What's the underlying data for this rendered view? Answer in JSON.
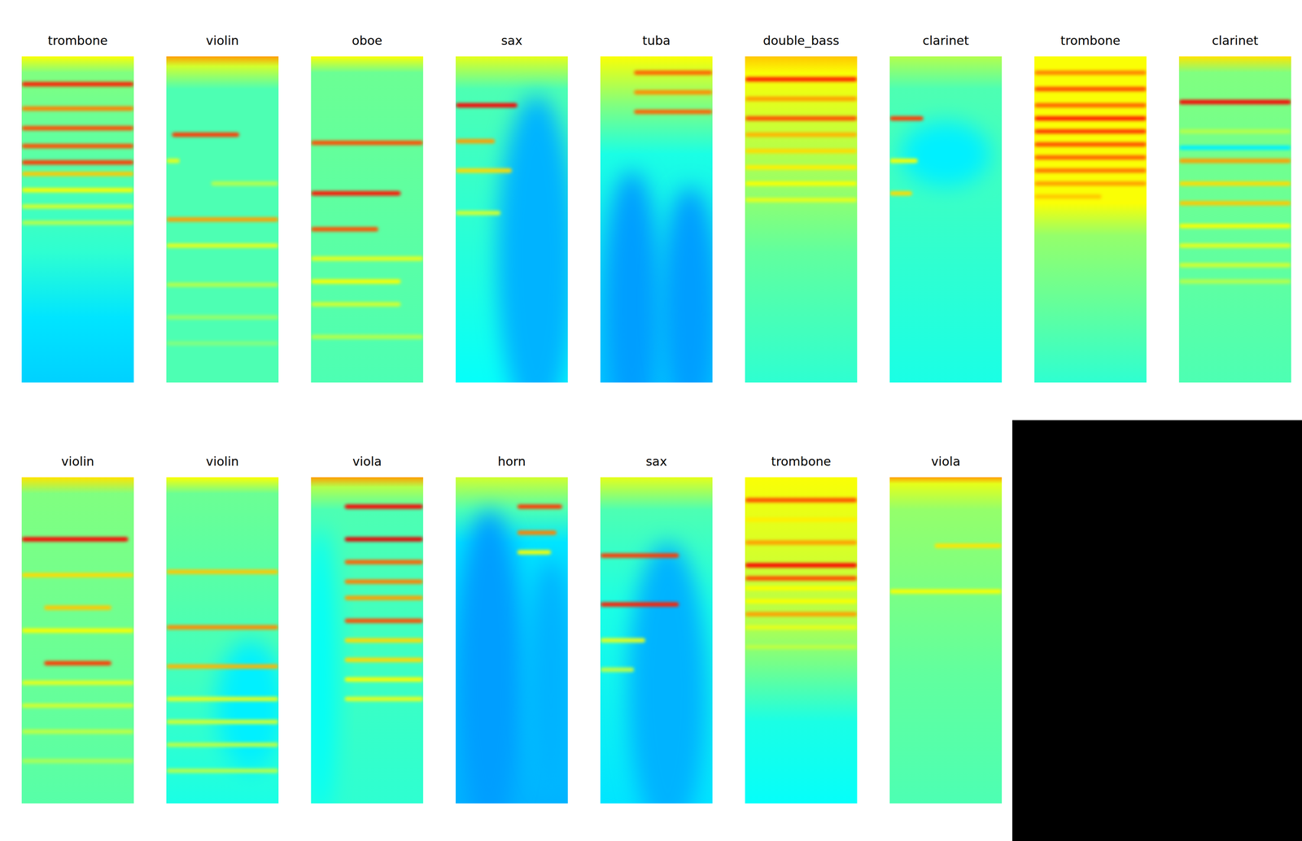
{
  "chart_data": [
    {
      "type": "heatmap",
      "title": "trombone",
      "tick_labels": false,
      "profile": [
        [
          0,
          0.62
        ],
        [
          0.05,
          0.5
        ],
        [
          0.6,
          0.42
        ],
        [
          0.8,
          0.35
        ],
        [
          1,
          0.33
        ]
      ],
      "bands": [
        {
          "y": 0.085,
          "level": 0.85,
          "x0": 0,
          "x1": 1
        },
        {
          "y": 0.16,
          "level": 0.75,
          "x0": 0,
          "x1": 1
        },
        {
          "y": 0.22,
          "level": 0.8,
          "x0": 0,
          "x1": 1
        },
        {
          "y": 0.275,
          "level": 0.8,
          "x0": 0,
          "x1": 1
        },
        {
          "y": 0.325,
          "level": 0.82,
          "x0": 0,
          "x1": 1
        },
        {
          "y": 0.36,
          "level": 0.68,
          "x0": 0,
          "x1": 1
        },
        {
          "y": 0.41,
          "level": 0.62,
          "x0": 0,
          "x1": 1
        },
        {
          "y": 0.46,
          "level": 0.58,
          "x0": 0,
          "x1": 1
        },
        {
          "y": 0.51,
          "level": 0.55,
          "x0": 0,
          "x1": 1
        }
      ],
      "patches": []
    },
    {
      "type": "heatmap",
      "title": "violin",
      "tick_labels": false,
      "profile": [
        [
          0,
          0.72
        ],
        [
          0.03,
          0.58
        ],
        [
          0.1,
          0.45
        ],
        [
          1,
          0.45
        ]
      ],
      "bands": [
        {
          "y": 0.24,
          "level": 0.82,
          "x0": 0.05,
          "x1": 0.65
        },
        {
          "y": 0.32,
          "level": 0.6,
          "x0": 0,
          "x1": 0.12
        },
        {
          "y": 0.39,
          "level": 0.55,
          "x0": 0.4,
          "x1": 1
        },
        {
          "y": 0.5,
          "level": 0.72,
          "x0": 0,
          "x1": 1
        },
        {
          "y": 0.58,
          "level": 0.6,
          "x0": 0,
          "x1": 1
        },
        {
          "y": 0.7,
          "level": 0.55,
          "x0": 0,
          "x1": 1
        },
        {
          "y": 0.8,
          "level": 0.52,
          "x0": 0,
          "x1": 1
        },
        {
          "y": 0.88,
          "level": 0.5,
          "x0": 0,
          "x1": 1
        }
      ],
      "patches": []
    },
    {
      "type": "heatmap",
      "title": "oboe",
      "tick_labels": false,
      "profile": [
        [
          0,
          0.62
        ],
        [
          0.05,
          0.48
        ],
        [
          1,
          0.45
        ]
      ],
      "bands": [
        {
          "y": 0.265,
          "level": 0.8,
          "x0": 0,
          "x1": 1
        },
        {
          "y": 0.42,
          "level": 0.86,
          "x0": 0,
          "x1": 0.8
        },
        {
          "y": 0.53,
          "level": 0.8,
          "x0": 0,
          "x1": 0.6
        },
        {
          "y": 0.62,
          "level": 0.6,
          "x0": 0,
          "x1": 1
        },
        {
          "y": 0.69,
          "level": 0.62,
          "x0": 0,
          "x1": 0.8
        },
        {
          "y": 0.76,
          "level": 0.58,
          "x0": 0,
          "x1": 0.8
        },
        {
          "y": 0.86,
          "level": 0.55,
          "x0": 0,
          "x1": 1
        }
      ],
      "patches": []
    },
    {
      "type": "heatmap",
      "title": "sax",
      "tick_labels": false,
      "profile": [
        [
          0,
          0.6
        ],
        [
          0.1,
          0.45
        ],
        [
          1,
          0.38
        ]
      ],
      "bands": [
        {
          "y": 0.15,
          "level": 0.88,
          "x0": 0,
          "x1": 0.55
        },
        {
          "y": 0.26,
          "level": 0.72,
          "x0": 0,
          "x1": 0.35
        },
        {
          "y": 0.35,
          "level": 0.66,
          "x0": 0,
          "x1": 0.5
        },
        {
          "y": 0.48,
          "level": 0.58,
          "x0": 0,
          "x1": 0.4
        }
      ],
      "patches": [
        {
          "cx": 0.72,
          "cy": 0.62,
          "rx": 0.35,
          "ry": 0.5,
          "level": 0.3
        }
      ]
    },
    {
      "type": "heatmap",
      "title": "tuba",
      "tick_labels": false,
      "profile": [
        [
          0,
          0.62
        ],
        [
          0.15,
          0.5
        ],
        [
          0.3,
          0.4
        ],
        [
          1,
          0.32
        ]
      ],
      "bands": [
        {
          "y": 0.05,
          "level": 0.78,
          "x0": 0.3,
          "x1": 1
        },
        {
          "y": 0.11,
          "level": 0.74,
          "x0": 0.3,
          "x1": 1
        },
        {
          "y": 0.17,
          "level": 0.78,
          "x0": 0.3,
          "x1": 1
        }
      ],
      "patches": [
        {
          "cx": 0.28,
          "cy": 0.75,
          "rx": 0.25,
          "ry": 0.4,
          "level": 0.28
        },
        {
          "cx": 0.8,
          "cy": 0.75,
          "rx": 0.25,
          "ry": 0.35,
          "level": 0.28
        }
      ]
    },
    {
      "type": "heatmap",
      "title": "double_bass",
      "tick_labels": false,
      "profile": [
        [
          0,
          0.68
        ],
        [
          0.05,
          0.62
        ],
        [
          0.3,
          0.55
        ],
        [
          0.6,
          0.47
        ],
        [
          1,
          0.42
        ]
      ],
      "bands": [
        {
          "y": 0.07,
          "level": 0.85,
          "x0": 0,
          "x1": 1
        },
        {
          "y": 0.13,
          "level": 0.72,
          "x0": 0,
          "x1": 1
        },
        {
          "y": 0.19,
          "level": 0.8,
          "x0": 0,
          "x1": 1
        },
        {
          "y": 0.24,
          "level": 0.7,
          "x0": 0,
          "x1": 1
        },
        {
          "y": 0.29,
          "level": 0.66,
          "x0": 0,
          "x1": 1
        },
        {
          "y": 0.34,
          "level": 0.64,
          "x0": 0,
          "x1": 1
        },
        {
          "y": 0.39,
          "level": 0.62,
          "x0": 0,
          "x1": 1
        },
        {
          "y": 0.44,
          "level": 0.6,
          "x0": 0,
          "x1": 1
        }
      ],
      "patches": []
    },
    {
      "type": "heatmap",
      "title": "clarinet",
      "tick_labels": false,
      "profile": [
        [
          0,
          0.55
        ],
        [
          0.1,
          0.45
        ],
        [
          1,
          0.4
        ]
      ],
      "bands": [
        {
          "y": 0.19,
          "level": 0.82,
          "x0": 0,
          "x1": 0.3
        },
        {
          "y": 0.32,
          "level": 0.62,
          "x0": 0,
          "x1": 0.25
        },
        {
          "y": 0.42,
          "level": 0.66,
          "x0": 0,
          "x1": 0.2
        }
      ],
      "patches": [
        {
          "cx": 0.5,
          "cy": 0.3,
          "rx": 0.4,
          "ry": 0.1,
          "level": 0.36
        }
      ]
    },
    {
      "type": "heatmap",
      "title": "trombone",
      "tick_labels": false,
      "profile": [
        [
          0,
          0.62
        ],
        [
          0.45,
          0.62
        ],
        [
          0.55,
          0.52
        ],
        [
          1,
          0.42
        ]
      ],
      "bands": [
        {
          "y": 0.05,
          "level": 0.75,
          "x0": 0,
          "x1": 1
        },
        {
          "y": 0.1,
          "level": 0.8,
          "x0": 0,
          "x1": 1
        },
        {
          "y": 0.15,
          "level": 0.78,
          "x0": 0,
          "x1": 1
        },
        {
          "y": 0.19,
          "level": 0.85,
          "x0": 0,
          "x1": 1
        },
        {
          "y": 0.23,
          "level": 0.82,
          "x0": 0,
          "x1": 1
        },
        {
          "y": 0.27,
          "level": 0.8,
          "x0": 0,
          "x1": 1
        },
        {
          "y": 0.31,
          "level": 0.78,
          "x0": 0,
          "x1": 1
        },
        {
          "y": 0.35,
          "level": 0.76,
          "x0": 0,
          "x1": 1
        },
        {
          "y": 0.39,
          "level": 0.72,
          "x0": 0,
          "x1": 1
        },
        {
          "y": 0.43,
          "level": 0.68,
          "x0": 0,
          "x1": 0.6
        }
      ],
      "patches": []
    },
    {
      "type": "heatmap",
      "title": "clarinet",
      "tick_labels": false,
      "profile": [
        [
          0,
          0.65
        ],
        [
          0.05,
          0.5
        ],
        [
          1,
          0.45
        ]
      ],
      "bands": [
        {
          "y": 0.14,
          "level": 0.88,
          "x0": 0,
          "x1": 1
        },
        {
          "y": 0.23,
          "level": 0.55,
          "x0": 0,
          "x1": 1
        },
        {
          "y": 0.28,
          "level": 0.36,
          "x0": 0,
          "x1": 1
        },
        {
          "y": 0.32,
          "level": 0.72,
          "x0": 0,
          "x1": 1
        },
        {
          "y": 0.39,
          "level": 0.66,
          "x0": 0,
          "x1": 1
        },
        {
          "y": 0.45,
          "level": 0.68,
          "x0": 0,
          "x1": 1
        },
        {
          "y": 0.52,
          "level": 0.62,
          "x0": 0,
          "x1": 1
        },
        {
          "y": 0.58,
          "level": 0.6,
          "x0": 0,
          "x1": 1
        },
        {
          "y": 0.64,
          "level": 0.58,
          "x0": 0,
          "x1": 1
        },
        {
          "y": 0.69,
          "level": 0.55,
          "x0": 0,
          "x1": 1
        }
      ],
      "patches": []
    },
    {
      "type": "heatmap",
      "title": "violin",
      "tick_labels": false,
      "profile": [
        [
          0,
          0.65
        ],
        [
          0.05,
          0.5
        ],
        [
          1,
          0.46
        ]
      ],
      "bands": [
        {
          "y": 0.19,
          "level": 0.88,
          "x0": 0,
          "x1": 0.95
        },
        {
          "y": 0.3,
          "level": 0.66,
          "x0": 0,
          "x1": 1
        },
        {
          "y": 0.4,
          "level": 0.68,
          "x0": 0.2,
          "x1": 0.8
        },
        {
          "y": 0.47,
          "level": 0.62,
          "x0": 0,
          "x1": 1
        },
        {
          "y": 0.57,
          "level": 0.82,
          "x0": 0.2,
          "x1": 0.8
        },
        {
          "y": 0.63,
          "level": 0.6,
          "x0": 0,
          "x1": 1
        },
        {
          "y": 0.7,
          "level": 0.58,
          "x0": 0,
          "x1": 1
        },
        {
          "y": 0.78,
          "level": 0.56,
          "x0": 0,
          "x1": 1
        },
        {
          "y": 0.87,
          "level": 0.54,
          "x0": 0,
          "x1": 1
        }
      ],
      "patches": []
    },
    {
      "type": "heatmap",
      "title": "violin",
      "tick_labels": false,
      "profile": [
        [
          0,
          0.62
        ],
        [
          0.05,
          0.48
        ],
        [
          0.6,
          0.44
        ],
        [
          1,
          0.4
        ]
      ],
      "bands": [
        {
          "y": 0.29,
          "level": 0.68,
          "x0": 0,
          "x1": 1
        },
        {
          "y": 0.46,
          "level": 0.74,
          "x0": 0,
          "x1": 1
        },
        {
          "y": 0.58,
          "level": 0.7,
          "x0": 0,
          "x1": 1
        },
        {
          "y": 0.68,
          "level": 0.6,
          "x0": 0,
          "x1": 1
        },
        {
          "y": 0.75,
          "level": 0.58,
          "x0": 0,
          "x1": 1
        },
        {
          "y": 0.82,
          "level": 0.56,
          "x0": 0,
          "x1": 1
        },
        {
          "y": 0.9,
          "level": 0.55,
          "x0": 0,
          "x1": 1
        }
      ],
      "patches": [
        {
          "cx": 0.75,
          "cy": 0.7,
          "rx": 0.3,
          "ry": 0.2,
          "level": 0.36
        }
      ]
    },
    {
      "type": "heatmap",
      "title": "viola",
      "tick_labels": false,
      "profile": [
        [
          0,
          0.72
        ],
        [
          0.03,
          0.55
        ],
        [
          0.1,
          0.45
        ],
        [
          1,
          0.42
        ]
      ],
      "bands": [
        {
          "y": 0.09,
          "level": 0.88,
          "x0": 0.3,
          "x1": 1
        },
        {
          "y": 0.19,
          "level": 0.9,
          "x0": 0.3,
          "x1": 1
        },
        {
          "y": 0.26,
          "level": 0.78,
          "x0": 0.3,
          "x1": 1
        },
        {
          "y": 0.32,
          "level": 0.75,
          "x0": 0.3,
          "x1": 1
        },
        {
          "y": 0.37,
          "level": 0.72,
          "x0": 0.3,
          "x1": 1
        },
        {
          "y": 0.44,
          "level": 0.8,
          "x0": 0.3,
          "x1": 1
        },
        {
          "y": 0.5,
          "level": 0.66,
          "x0": 0.3,
          "x1": 1
        },
        {
          "y": 0.56,
          "level": 0.66,
          "x0": 0.3,
          "x1": 1
        },
        {
          "y": 0.62,
          "level": 0.62,
          "x0": 0.3,
          "x1": 1
        },
        {
          "y": 0.68,
          "level": 0.6,
          "x0": 0.3,
          "x1": 1
        }
      ],
      "patches": [
        {
          "cx": 0.08,
          "cy": 0.6,
          "rx": 0.15,
          "ry": 0.45,
          "level": 0.38
        }
      ]
    },
    {
      "type": "heatmap",
      "title": "horn",
      "tick_labels": false,
      "profile": [
        [
          0,
          0.58
        ],
        [
          0.1,
          0.45
        ],
        [
          0.2,
          0.35
        ],
        [
          1,
          0.3
        ]
      ],
      "bands": [
        {
          "y": 0.09,
          "level": 0.82,
          "x0": 0.55,
          "x1": 0.95
        },
        {
          "y": 0.17,
          "level": 0.75,
          "x0": 0.55,
          "x1": 0.9
        },
        {
          "y": 0.23,
          "level": 0.62,
          "x0": 0.55,
          "x1": 0.85
        }
      ],
      "patches": [
        {
          "cx": 0.3,
          "cy": 0.6,
          "rx": 0.3,
          "ry": 0.5,
          "level": 0.28
        },
        {
          "cx": 0.85,
          "cy": 0.6,
          "rx": 0.2,
          "ry": 0.35,
          "level": 0.3
        }
      ]
    },
    {
      "type": "heatmap",
      "title": "sax",
      "tick_labels": false,
      "profile": [
        [
          0,
          0.6
        ],
        [
          0.1,
          0.45
        ],
        [
          0.4,
          0.4
        ],
        [
          1,
          0.35
        ]
      ],
      "bands": [
        {
          "y": 0.24,
          "level": 0.82,
          "x0": 0,
          "x1": 0.7
        },
        {
          "y": 0.39,
          "level": 0.85,
          "x0": 0,
          "x1": 0.7
        },
        {
          "y": 0.5,
          "level": 0.6,
          "x0": 0,
          "x1": 0.4
        },
        {
          "y": 0.59,
          "level": 0.56,
          "x0": 0,
          "x1": 0.3
        }
      ],
      "patches": [
        {
          "cx": 0.6,
          "cy": 0.65,
          "rx": 0.35,
          "ry": 0.45,
          "level": 0.3
        }
      ]
    },
    {
      "type": "heatmap",
      "title": "trombone",
      "tick_labels": false,
      "profile": [
        [
          0,
          0.62
        ],
        [
          0.45,
          0.55
        ],
        [
          0.75,
          0.4
        ],
        [
          1,
          0.38
        ]
      ],
      "bands": [
        {
          "y": 0.07,
          "level": 0.8,
          "x0": 0,
          "x1": 1
        },
        {
          "y": 0.13,
          "level": 0.64,
          "x0": 0,
          "x1": 1
        },
        {
          "y": 0.2,
          "level": 0.72,
          "x0": 0,
          "x1": 1
        },
        {
          "y": 0.27,
          "level": 0.88,
          "x0": 0,
          "x1": 1
        },
        {
          "y": 0.31,
          "level": 0.8,
          "x0": 0,
          "x1": 1
        },
        {
          "y": 0.34,
          "level": 0.62,
          "x0": 0,
          "x1": 1
        },
        {
          "y": 0.38,
          "level": 0.62,
          "x0": 0,
          "x1": 1
        },
        {
          "y": 0.42,
          "level": 0.72,
          "x0": 0,
          "x1": 1
        },
        {
          "y": 0.46,
          "level": 0.6,
          "x0": 0,
          "x1": 1
        },
        {
          "y": 0.52,
          "level": 0.56,
          "x0": 0,
          "x1": 1
        }
      ],
      "patches": []
    },
    {
      "type": "heatmap",
      "title": "viola",
      "tick_labels": false,
      "profile": [
        [
          0,
          0.72
        ],
        [
          0.02,
          0.6
        ],
        [
          0.1,
          0.52
        ],
        [
          0.6,
          0.47
        ],
        [
          1,
          0.45
        ]
      ],
      "bands": [
        {
          "y": 0.21,
          "level": 0.65,
          "x0": 0.4,
          "x1": 1
        },
        {
          "y": 0.35,
          "level": 0.62,
          "x0": 0,
          "x1": 1
        }
      ],
      "patches": []
    }
  ]
}
